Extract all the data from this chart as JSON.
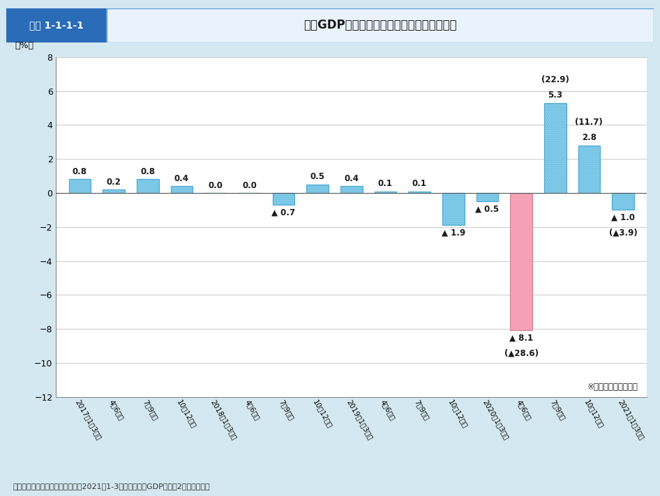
{
  "title_box_label": "図表 1-1-1-1",
  "title_main": "実質GDP成長率の推移（季節調整済前期比）",
  "ylabel": "（%）",
  "source": "資料：内閣府「国民経済計算」（2021年1-3月期四半期別GDP速報（2次速報値））",
  "categories": [
    "2017年1〜3月期",
    "4〜6月期",
    "7〜9月期",
    "10〜12月期",
    "2018年1〜3月期",
    "4〜6月期",
    "7〜9月期",
    "10〜12月期",
    "2019年1〜3月期",
    "4〜6月期",
    "7〜9月期",
    "10〜12月期",
    "2020年1〜3月期",
    "4〜6月期",
    "7〜9月期",
    "10〜12月期",
    "2021年1〜3月期"
  ],
  "values": [
    0.8,
    0.2,
    0.8,
    0.4,
    0.0,
    0.0,
    -0.7,
    0.5,
    0.4,
    0.1,
    0.1,
    -1.9,
    -0.5,
    -8.1,
    5.3,
    2.8,
    -1.0
  ],
  "bar_colors": [
    "#87CEEB",
    "#87CEEB",
    "#87CEEB",
    "#87CEEB",
    "#87CEEB",
    "#87CEEB",
    "#87CEEB",
    "#87CEEB",
    "#87CEEB",
    "#87CEEB",
    "#87CEEB",
    "#87CEEB",
    "#87CEEB",
    "#F4A0B5",
    "#87CEEB",
    "#87CEEB",
    "#87CEEB"
  ],
  "annotations": [
    {
      "idx": 0,
      "val": 0.8,
      "label": "0.8",
      "annual": null,
      "above": true
    },
    {
      "idx": 1,
      "val": 0.2,
      "label": "0.2",
      "annual": null,
      "above": true
    },
    {
      "idx": 2,
      "val": 0.8,
      "label": "0.8",
      "annual": null,
      "above": true
    },
    {
      "idx": 3,
      "val": 0.4,
      "label": "0.4",
      "annual": null,
      "above": true
    },
    {
      "idx": 4,
      "val": 0.0,
      "label": "0.0",
      "annual": null,
      "above": true
    },
    {
      "idx": 5,
      "val": 0.0,
      "label": "0.0",
      "annual": null,
      "above": true
    },
    {
      "idx": 6,
      "val": -0.7,
      "label": "▲ 0.7",
      "annual": null,
      "above": false
    },
    {
      "idx": 7,
      "val": 0.5,
      "label": "0.5",
      "annual": null,
      "above": true
    },
    {
      "idx": 8,
      "val": 0.4,
      "label": "0.4",
      "annual": null,
      "above": true
    },
    {
      "idx": 9,
      "val": 0.1,
      "label": "0.1",
      "annual": null,
      "above": true
    },
    {
      "idx": 10,
      "val": 0.1,
      "label": "0.1",
      "annual": null,
      "above": true
    },
    {
      "idx": 11,
      "val": -1.9,
      "label": "▲ 1.9",
      "annual": null,
      "above": false
    },
    {
      "idx": 12,
      "val": -0.5,
      "label": "▲ 0.5",
      "annual": null,
      "above": false
    },
    {
      "idx": 13,
      "val": -8.1,
      "label": "▲ 8.1",
      "annual": -28.6,
      "above": false
    },
    {
      "idx": 14,
      "val": 5.3,
      "label": "5.3",
      "annual": 22.9,
      "above": true
    },
    {
      "idx": 15,
      "val": 2.8,
      "label": "2.8",
      "annual": 11.7,
      "above": true
    },
    {
      "idx": 16,
      "val": -1.0,
      "label": "▲ 1.0",
      "annual": -3.9,
      "above": false
    }
  ],
  "ylim": [
    -12,
    8
  ],
  "yticks": [
    -12,
    -10,
    -8,
    -6,
    -4,
    -2,
    0,
    2,
    4,
    6,
    8
  ],
  "background_outer": "#D3E8F0",
  "background_inner": "#FFFFFF",
  "grid_color": "#BBBBBB",
  "note": "※（　）内は年率換算",
  "header_bg_left": "#2B6DA8",
  "header_bg_right": "#5B9BD5",
  "pink_bar_color": "#F4A0B5"
}
